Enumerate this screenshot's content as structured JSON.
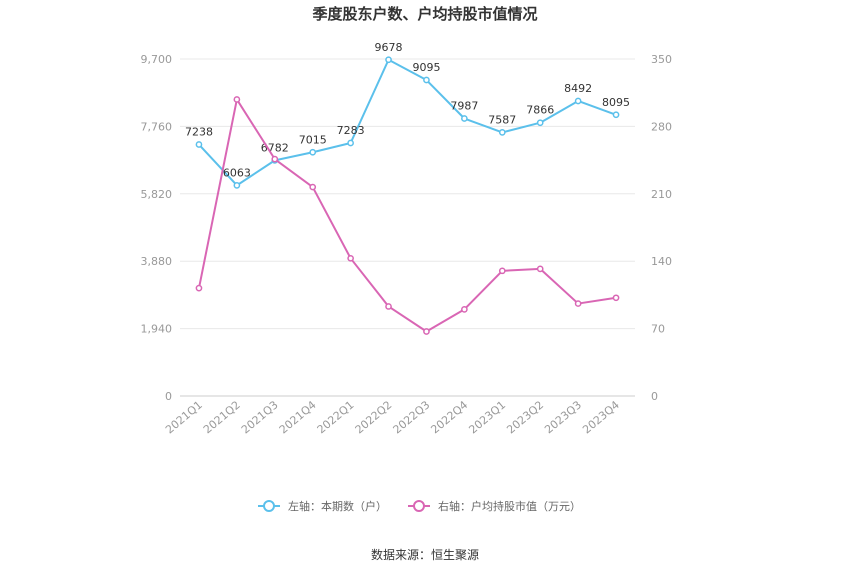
{
  "chart_data": {
    "type": "line",
    "title": "季度股东户数、户均持股市值情况",
    "categories": [
      "2021Q1",
      "2021Q2",
      "2021Q3",
      "2021Q4",
      "2022Q1",
      "2022Q2",
      "2022Q3",
      "2022Q4",
      "2023Q1",
      "2023Q2",
      "2023Q3",
      "2023Q4"
    ],
    "left_axis": {
      "ylim": [
        0,
        9700
      ],
      "ticks": [
        "0",
        "1,940",
        "3,880",
        "5,820",
        "7,760",
        "9,700"
      ],
      "tick_values": [
        0,
        1940,
        3880,
        5820,
        7760,
        9700
      ]
    },
    "right_axis": {
      "ylim": [
        0,
        350
      ],
      "ticks": [
        "0",
        "70",
        "140",
        "210",
        "280",
        "350"
      ],
      "tick_values": [
        0,
        70,
        140,
        210,
        280,
        350
      ]
    },
    "series": [
      {
        "name": "左轴：本期数（户）",
        "axis": "left",
        "color": "#5bc0eb",
        "values": [
          7238,
          6063,
          6782,
          7015,
          7283,
          9678,
          9095,
          7987,
          7587,
          7866,
          8492,
          8095
        ],
        "labels": [
          "7238",
          "6063",
          "6782",
          "7015",
          "7283",
          "9678",
          "9095",
          "7987",
          "7587",
          "7866",
          "8492",
          "8095"
        ]
      },
      {
        "name": "右轴：户均持股市值（万元）",
        "axis": "right",
        "color": "#d966b4",
        "values": [
          112,
          308,
          246,
          217,
          143,
          93,
          67,
          90,
          130,
          132,
          96,
          102
        ]
      }
    ],
    "grid": true,
    "legend_position": "bottom",
    "source": "数据来源：恒生聚源"
  }
}
